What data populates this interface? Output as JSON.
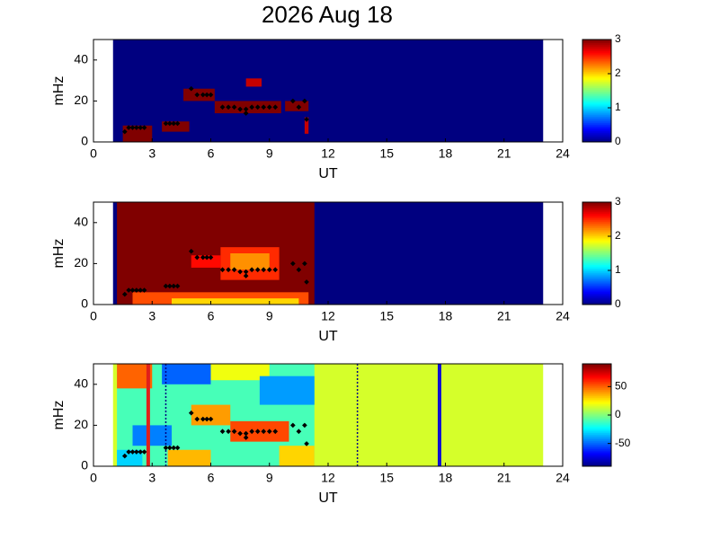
{
  "chart_data": [
    {
      "type": "heatmap",
      "title": "2026 Aug 18",
      "xlabel": "UT",
      "ylabel": "mHz",
      "xlim": [
        0,
        24
      ],
      "ylim": [
        0,
        50
      ],
      "xticks": [
        0,
        3,
        6,
        9,
        12,
        15,
        18,
        21,
        24
      ],
      "yticks": [
        0,
        20,
        40
      ],
      "clim": [
        0,
        3
      ],
      "cticks": [
        0,
        1,
        2,
        3
      ],
      "regions": [
        {
          "x0": 1,
          "x1": 23,
          "y0": 0,
          "y1": 50,
          "value": 0
        },
        {
          "x0": 1.5,
          "x1": 3.0,
          "y0": 0,
          "y1": 8,
          "value": 3
        },
        {
          "x0": 3.5,
          "x1": 4.9,
          "y0": 5,
          "y1": 10,
          "value": 3
        },
        {
          "x0": 4.6,
          "x1": 6.2,
          "y0": 20,
          "y1": 26,
          "value": 3
        },
        {
          "x0": 6.2,
          "x1": 9.6,
          "y0": 14,
          "y1": 20,
          "value": 3
        },
        {
          "x0": 7.8,
          "x1": 8.6,
          "y0": 27,
          "y1": 31,
          "value": 2.8
        },
        {
          "x0": 9.8,
          "x1": 11.0,
          "y0": 15,
          "y1": 20,
          "value": 3
        },
        {
          "x0": 10.8,
          "x1": 11.0,
          "y0": 4,
          "y1": 12,
          "value": 2.8
        }
      ],
      "points": {
        "x": [
          1.6,
          1.8,
          2.0,
          2.2,
          2.4,
          2.6,
          3.7,
          3.9,
          4.1,
          4.3,
          5.0,
          5.3,
          5.6,
          5.8,
          6.0,
          6.6,
          6.9,
          7.2,
          7.5,
          7.8,
          8.1,
          8.4,
          8.7,
          9.0,
          9.3,
          7.8,
          10.2,
          10.5,
          10.8,
          10.9
        ],
        "y": [
          5,
          7,
          7,
          7,
          7,
          7,
          9,
          9,
          9,
          9,
          26,
          23,
          23,
          23,
          23,
          17,
          17,
          17,
          16,
          16,
          17,
          17,
          17,
          17,
          17,
          14,
          20,
          17,
          20,
          11
        ]
      }
    },
    {
      "type": "heatmap",
      "xlabel": "UT",
      "ylabel": "mHz",
      "xlim": [
        0,
        24
      ],
      "ylim": [
        0,
        50
      ],
      "xticks": [
        0,
        3,
        6,
        9,
        12,
        15,
        18,
        21,
        24
      ],
      "yticks": [
        0,
        20,
        40
      ],
      "clim": [
        0,
        3
      ],
      "cticks": [
        0,
        1,
        2,
        3
      ],
      "regions": [
        {
          "x0": 1,
          "x1": 23,
          "y0": 0,
          "y1": 50,
          "value": 0
        },
        {
          "x0": 1.2,
          "x1": 11.3,
          "y0": 0,
          "y1": 50,
          "value": 3
        },
        {
          "x0": 2.0,
          "x1": 11.0,
          "y0": 0,
          "y1": 6,
          "value": 2.4
        },
        {
          "x0": 4.0,
          "x1": 10.5,
          "y0": 0,
          "y1": 3,
          "value": 2.0
        },
        {
          "x0": 6.5,
          "x1": 9.5,
          "y0": 12,
          "y1": 28,
          "value": 2.5
        },
        {
          "x0": 7.0,
          "x1": 9.0,
          "y0": 17,
          "y1": 25,
          "value": 2.2
        },
        {
          "x0": 5.0,
          "x1": 6.5,
          "y0": 18,
          "y1": 24,
          "value": 2.6
        }
      ],
      "points": {
        "x": [
          1.6,
          1.8,
          2.0,
          2.2,
          2.4,
          2.6,
          3.7,
          3.9,
          4.1,
          4.3,
          5.0,
          5.3,
          5.6,
          5.8,
          6.0,
          6.6,
          6.9,
          7.2,
          7.5,
          7.8,
          8.1,
          8.4,
          8.7,
          9.0,
          9.3,
          7.8,
          10.2,
          10.5,
          10.8,
          10.9
        ],
        "y": [
          5,
          7,
          7,
          7,
          7,
          7,
          9,
          9,
          9,
          9,
          26,
          23,
          23,
          23,
          23,
          17,
          17,
          17,
          16,
          16,
          17,
          17,
          17,
          17,
          17,
          14,
          20,
          17,
          20,
          11
        ]
      }
    },
    {
      "type": "heatmap",
      "xlabel": "UT",
      "ylabel": "mHz",
      "xlim": [
        0,
        24
      ],
      "ylim": [
        0,
        50
      ],
      "xticks": [
        0,
        3,
        6,
        9,
        12,
        15,
        18,
        21,
        24
      ],
      "yticks": [
        0,
        20,
        40
      ],
      "clim": [
        -90,
        90
      ],
      "cticks": [
        -50,
        0,
        50
      ],
      "regions": [
        {
          "x0": 1,
          "x1": 23,
          "y0": 0,
          "y1": 50,
          "value": 15
        },
        {
          "x0": 1.2,
          "x1": 11.3,
          "y0": 0,
          "y1": 50,
          "value": -10
        },
        {
          "x0": 1.2,
          "x1": 3.0,
          "y0": 38,
          "y1": 50,
          "value": 50
        },
        {
          "x0": 3.5,
          "x1": 6.0,
          "y0": 40,
          "y1": 50,
          "value": -50
        },
        {
          "x0": 6.0,
          "x1": 9.0,
          "y0": 42,
          "y1": 50,
          "value": 20
        },
        {
          "x0": 8.5,
          "x1": 11.3,
          "y0": 30,
          "y1": 44,
          "value": -40
        },
        {
          "x0": 5.0,
          "x1": 7.0,
          "y0": 20,
          "y1": 30,
          "value": 40
        },
        {
          "x0": 7.0,
          "x1": 10.0,
          "y0": 12,
          "y1": 22,
          "value": 55
        },
        {
          "x0": 2.0,
          "x1": 4.0,
          "y0": 10,
          "y1": 20,
          "value": -45
        },
        {
          "x0": 3.8,
          "x1": 6.0,
          "y0": 0,
          "y1": 8,
          "value": 35
        },
        {
          "x0": 9.5,
          "x1": 11.3,
          "y0": 0,
          "y1": 10,
          "value": 30
        },
        {
          "x0": 1.2,
          "x1": 2.5,
          "y0": 0,
          "y1": 8,
          "value": -30
        }
      ],
      "vlines": [
        {
          "x": 2.8,
          "color": "#e0201a",
          "dash": false
        },
        {
          "x": 3.7,
          "color": "#000080",
          "dash": true
        },
        {
          "x": 13.5,
          "color": "#000080",
          "dash": true
        },
        {
          "x": 17.7,
          "color": "#1010d0",
          "dash": false
        }
      ],
      "points": {
        "x": [
          1.6,
          1.8,
          2.0,
          2.2,
          2.4,
          2.6,
          3.7,
          3.9,
          4.1,
          4.3,
          5.0,
          5.3,
          5.6,
          5.8,
          6.0,
          6.6,
          6.9,
          7.2,
          7.5,
          7.8,
          8.1,
          8.4,
          8.7,
          9.0,
          9.3,
          7.8,
          10.2,
          10.5,
          10.8,
          10.9
        ],
        "y": [
          5,
          7,
          7,
          7,
          7,
          7,
          9,
          9,
          9,
          9,
          26,
          23,
          23,
          23,
          23,
          17,
          17,
          17,
          16,
          16,
          17,
          17,
          17,
          17,
          17,
          14,
          20,
          17,
          20,
          11
        ]
      }
    }
  ]
}
